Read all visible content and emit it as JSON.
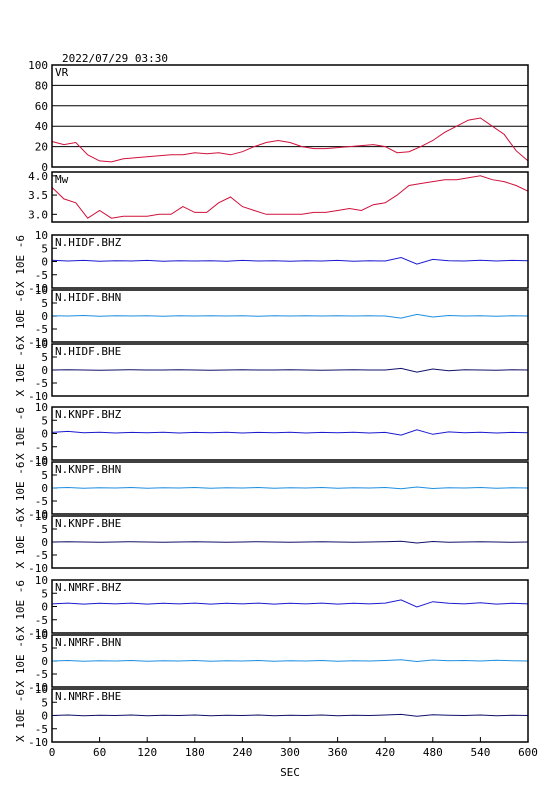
{
  "chart_data": [
    {
      "type": "line",
      "title": "2022/07/29 03:30",
      "label": "VR",
      "color": "#d0103a",
      "grid": true,
      "xlim": [
        0,
        600
      ],
      "ylim": [
        0,
        100
      ],
      "yticks": [
        0,
        20,
        40,
        60,
        80,
        100
      ],
      "x": [
        0,
        15,
        30,
        45,
        60,
        75,
        90,
        105,
        120,
        135,
        150,
        165,
        180,
        195,
        210,
        225,
        240,
        255,
        270,
        285,
        300,
        315,
        330,
        345,
        360,
        375,
        390,
        405,
        420,
        435,
        450,
        465,
        480,
        495,
        510,
        525,
        540,
        555,
        570,
        585,
        600
      ],
      "values": [
        25,
        22,
        24,
        12,
        6,
        5,
        8,
        9,
        10,
        11,
        12,
        12,
        14,
        13,
        14,
        12,
        15,
        20,
        24,
        26,
        24,
        20,
        18,
        18,
        19,
        20,
        21,
        22,
        20,
        14,
        15,
        20,
        26,
        34,
        40,
        46,
        48,
        40,
        32,
        16,
        6
      ]
    },
    {
      "type": "line",
      "label": "Mw",
      "color": "#d0103a",
      "grid": false,
      "xlim": [
        0,
        600
      ],
      "ylim": [
        2.8,
        4.1
      ],
      "yticks": [
        {
          "value": 3,
          "label": "3.0"
        },
        3.5,
        {
          "value": 4,
          "label": "4.0"
        }
      ],
      "x": [
        0,
        15,
        30,
        45,
        60,
        75,
        90,
        105,
        120,
        135,
        150,
        165,
        180,
        195,
        210,
        225,
        240,
        255,
        270,
        285,
        300,
        315,
        330,
        345,
        360,
        375,
        390,
        405,
        420,
        435,
        450,
        465,
        480,
        495,
        510,
        525,
        540,
        555,
        570,
        585,
        600
      ],
      "values": [
        3.7,
        3.4,
        3.3,
        2.9,
        3.1,
        2.9,
        2.95,
        2.95,
        2.95,
        3.0,
        3.0,
        3.2,
        3.05,
        3.05,
        3.3,
        3.45,
        3.2,
        3.1,
        3.0,
        3.0,
        3.0,
        3.0,
        3.05,
        3.05,
        3.1,
        3.15,
        3.1,
        3.25,
        3.3,
        3.5,
        3.75,
        3.8,
        3.85,
        3.9,
        3.9,
        3.95,
        4.0,
        3.9,
        3.85,
        3.75,
        3.6
      ]
    },
    {
      "type": "line",
      "label": "N.HIDF.BHZ",
      "ylabel": "X 10E -6",
      "color": "#1a1ad0",
      "xlim": [
        0,
        600
      ],
      "ylim": [
        -10,
        10
      ],
      "yticks": [
        -10,
        -5,
        0,
        5,
        10
      ],
      "x": [
        0,
        20,
        40,
        60,
        80,
        100,
        120,
        140,
        160,
        180,
        200,
        220,
        240,
        260,
        280,
        300,
        320,
        340,
        360,
        380,
        400,
        420,
        440,
        460,
        480,
        500,
        520,
        540,
        560,
        580,
        600
      ],
      "values": [
        0.5,
        0.2,
        0.4,
        0.1,
        0.3,
        0.2,
        0.4,
        0.1,
        0.3,
        0.2,
        0.3,
        0.1,
        0.4,
        0.2,
        0.3,
        0.1,
        0.3,
        0.2,
        0.4,
        0.1,
        0.3,
        0.2,
        1.5,
        -1,
        0.8,
        0.3,
        0.2,
        0.5,
        0.2,
        0.4,
        0.3
      ]
    },
    {
      "type": "line",
      "label": "N.HIDF.BHN",
      "ylabel": "X 10E -6",
      "color": "#1e8ee0",
      "xlim": [
        0,
        600
      ],
      "ylim": [
        -10,
        10
      ],
      "yticks": [
        -10,
        -5,
        0,
        5,
        10
      ],
      "x": [
        0,
        20,
        40,
        60,
        80,
        100,
        120,
        140,
        160,
        180,
        200,
        220,
        240,
        260,
        280,
        300,
        320,
        340,
        360,
        380,
        400,
        420,
        440,
        460,
        480,
        500,
        520,
        540,
        560,
        580,
        600
      ],
      "values": [
        0.1,
        0,
        0.2,
        -0.1,
        0.1,
        0,
        0.1,
        -0.1,
        0.1,
        0,
        0.1,
        0,
        0.1,
        -0.1,
        0.1,
        0,
        0.1,
        0,
        0.1,
        0,
        0.1,
        0,
        -0.8,
        0.6,
        -0.4,
        0.2,
        0,
        0.1,
        -0.1,
        0.1,
        0
      ]
    },
    {
      "type": "line",
      "label": "N.HIDF.BHE",
      "ylabel": "X 10E -6",
      "color": "#10106a",
      "xlim": [
        0,
        600
      ],
      "ylim": [
        -10,
        10
      ],
      "yticks": [
        -10,
        -5,
        0,
        5,
        10
      ],
      "x": [
        0,
        20,
        40,
        60,
        80,
        100,
        120,
        140,
        160,
        180,
        200,
        220,
        240,
        260,
        280,
        300,
        320,
        340,
        360,
        380,
        400,
        420,
        440,
        460,
        480,
        500,
        520,
        540,
        560,
        580,
        600
      ],
      "values": [
        0,
        0.1,
        0,
        -0.1,
        0,
        0.1,
        0,
        0,
        0.1,
        0,
        -0.1,
        0,
        0.1,
        0,
        0,
        0.1,
        0,
        -0.1,
        0,
        0.1,
        0,
        0,
        0.6,
        -0.8,
        0.4,
        -0.3,
        0.1,
        0,
        -0.1,
        0.1,
        0
      ]
    },
    {
      "type": "line",
      "label": "N.KNPF.BHZ",
      "ylabel": "X 10E -6",
      "color": "#1a1ad0",
      "xlim": [
        0,
        600
      ],
      "ylim": [
        -10,
        10
      ],
      "yticks": [
        -10,
        -5,
        0,
        5,
        10
      ],
      "x": [
        0,
        20,
        40,
        60,
        80,
        100,
        120,
        140,
        160,
        180,
        200,
        220,
        240,
        260,
        280,
        300,
        320,
        340,
        360,
        380,
        400,
        420,
        440,
        460,
        480,
        500,
        520,
        540,
        560,
        580,
        600
      ],
      "values": [
        0.4,
        0.8,
        0.3,
        0.5,
        0.2,
        0.4,
        0.3,
        0.5,
        0.2,
        0.4,
        0.3,
        0.5,
        0.2,
        0.4,
        0.3,
        0.5,
        0.2,
        0.4,
        0.3,
        0.5,
        0.2,
        0.4,
        -0.6,
        1.4,
        -0.3,
        0.6,
        0.3,
        0.5,
        0.2,
        0.4,
        0.3
      ]
    },
    {
      "type": "line",
      "label": "N.KNPF.BHN",
      "ylabel": "X 10E -6",
      "color": "#1e8ee0",
      "xlim": [
        0,
        600
      ],
      "ylim": [
        -10,
        10
      ],
      "yticks": [
        -10,
        -5,
        0,
        5,
        10
      ],
      "x": [
        0,
        20,
        40,
        60,
        80,
        100,
        120,
        140,
        160,
        180,
        200,
        220,
        240,
        260,
        280,
        300,
        320,
        340,
        360,
        380,
        400,
        420,
        440,
        460,
        480,
        500,
        520,
        540,
        560,
        580,
        600
      ],
      "values": [
        0,
        0.2,
        -0.1,
        0.1,
        0,
        0.2,
        -0.1,
        0.1,
        0,
        0.2,
        -0.1,
        0.1,
        0,
        0.2,
        -0.1,
        0.1,
        0,
        0.2,
        -0.1,
        0.1,
        0,
        0.2,
        -0.3,
        0.4,
        -0.2,
        0.1,
        0,
        0.2,
        -0.1,
        0.1,
        0
      ]
    },
    {
      "type": "line",
      "label": "N.KNPF.BHE",
      "ylabel": "X 10E -6",
      "color": "#10106a",
      "xlim": [
        0,
        600
      ],
      "ylim": [
        -10,
        10
      ],
      "yticks": [
        -10,
        -5,
        0,
        5,
        10
      ],
      "x": [
        0,
        20,
        40,
        60,
        80,
        100,
        120,
        140,
        160,
        180,
        200,
        220,
        240,
        260,
        280,
        300,
        320,
        340,
        360,
        380,
        400,
        420,
        440,
        460,
        480,
        500,
        520,
        540,
        560,
        580,
        600
      ],
      "values": [
        0,
        0.1,
        0,
        -0.1,
        0,
        0.1,
        0,
        -0.1,
        0,
        0.1,
        0,
        -0.1,
        0,
        0.1,
        0,
        -0.1,
        0,
        0.1,
        0,
        -0.1,
        0,
        0.1,
        0.3,
        -0.4,
        0.2,
        -0.1,
        0,
        0.1,
        0,
        -0.1,
        0
      ]
    },
    {
      "type": "line",
      "label": "N.NMRF.BHZ",
      "ylabel": "X 10E -6",
      "color": "#1a1ad0",
      "xlim": [
        0,
        600
      ],
      "ylim": [
        -10,
        10
      ],
      "yticks": [
        -10,
        -5,
        0,
        5,
        10
      ],
      "x": [
        0,
        20,
        40,
        60,
        80,
        100,
        120,
        140,
        160,
        180,
        200,
        220,
        240,
        260,
        280,
        300,
        320,
        340,
        360,
        380,
        400,
        420,
        440,
        460,
        480,
        500,
        520,
        540,
        560,
        580,
        600
      ],
      "values": [
        1,
        1.3,
        0.9,
        1.2,
        1,
        1.3,
        0.9,
        1.2,
        1,
        1.3,
        0.9,
        1.2,
        1,
        1.3,
        0.9,
        1.2,
        1,
        1.3,
        0.9,
        1.2,
        1,
        1.3,
        2.5,
        -0.2,
        1.8,
        1.2,
        1,
        1.4,
        0.9,
        1.2,
        1
      ]
    },
    {
      "type": "line",
      "label": "N.NMRF.BHN",
      "ylabel": "X 10E -6",
      "color": "#1e8ee0",
      "xlim": [
        0,
        600
      ],
      "ylim": [
        -10,
        10
      ],
      "yticks": [
        -10,
        -5,
        0,
        5,
        10
      ],
      "x": [
        0,
        20,
        40,
        60,
        80,
        100,
        120,
        140,
        160,
        180,
        200,
        220,
        240,
        260,
        280,
        300,
        320,
        340,
        360,
        380,
        400,
        420,
        440,
        460,
        480,
        500,
        520,
        540,
        560,
        580,
        600
      ],
      "values": [
        0,
        0.2,
        -0.1,
        0.1,
        0,
        0.2,
        -0.1,
        0.1,
        0,
        0.2,
        -0.1,
        0.1,
        0,
        0.2,
        -0.1,
        0.1,
        0,
        0.2,
        -0.1,
        0.1,
        0,
        0.2,
        0.5,
        -0.2,
        0.4,
        0.1,
        0.2,
        0,
        0.3,
        0.1,
        0
      ]
    },
    {
      "type": "line",
      "label": "N.NMRF.BHE",
      "ylabel": "X 10E -6",
      "color": "#10106a",
      "xlabel": "SEC",
      "xlim": [
        0,
        600
      ],
      "ylim": [
        -10,
        10
      ],
      "yticks": [
        -10,
        -5,
        0,
        5,
        10
      ],
      "xticks": [
        0,
        60,
        120,
        180,
        240,
        300,
        360,
        420,
        480,
        540,
        600
      ],
      "x": [
        0,
        20,
        40,
        60,
        80,
        100,
        120,
        140,
        160,
        180,
        200,
        220,
        240,
        260,
        280,
        300,
        320,
        340,
        360,
        380,
        400,
        420,
        440,
        460,
        480,
        500,
        520,
        540,
        560,
        580,
        600
      ],
      "values": [
        0,
        0.2,
        -0.1,
        0.1,
        0,
        0.2,
        -0.1,
        0.1,
        0,
        0.2,
        -0.1,
        0.1,
        0,
        0.2,
        -0.1,
        0.1,
        0,
        0.2,
        -0.1,
        0.1,
        0,
        0.2,
        0.4,
        -0.3,
        0.3,
        0.1,
        0,
        0.2,
        -0.1,
        0.1,
        0
      ]
    }
  ]
}
